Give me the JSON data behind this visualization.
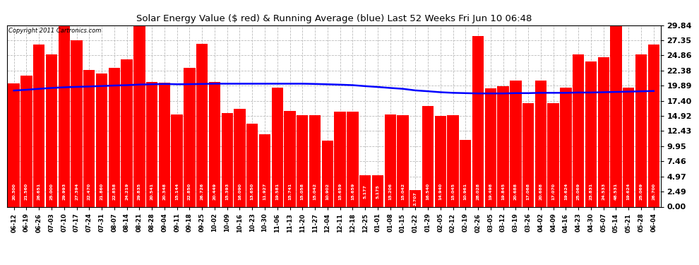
{
  "title": "Solar Energy Value ($ red) & Running Average (blue) Last 52 Weeks Fri Jun 10 06:48",
  "copyright": "Copyright 2011 Cartronics.com",
  "bar_color": "#ff0000",
  "avg_line_color": "#0000ff",
  "background_color": "#ffffff",
  "plot_bg_color": "#ffffff",
  "grid_color": "#bbbbbb",
  "ylim": [
    0.0,
    29.84
  ],
  "yticks": [
    0.0,
    2.49,
    4.97,
    7.46,
    9.95,
    12.43,
    14.92,
    17.4,
    19.89,
    22.38,
    24.86,
    27.35,
    29.84
  ],
  "categories": [
    "06-12",
    "06-19",
    "06-26",
    "07-03",
    "07-10",
    "07-17",
    "07-24",
    "07-31",
    "08-07",
    "08-14",
    "08-21",
    "08-28",
    "09-04",
    "09-11",
    "09-18",
    "09-25",
    "10-02",
    "10-09",
    "10-16",
    "10-23",
    "10-30",
    "11-06",
    "11-13",
    "11-20",
    "11-27",
    "12-04",
    "12-11",
    "12-18",
    "12-25",
    "01-01",
    "01-08",
    "01-15",
    "01-22",
    "01-29",
    "02-05",
    "02-12",
    "02-19",
    "02-26",
    "03-05",
    "03-12",
    "03-19",
    "03-26",
    "04-02",
    "04-09",
    "04-16",
    "04-23",
    "04-30",
    "05-07",
    "05-14",
    "05-21",
    "05-28",
    "06-04"
  ],
  "values": [
    20.3,
    21.56,
    26.651,
    25.0,
    29.993,
    27.394,
    22.47,
    21.86,
    22.858,
    24.219,
    29.835,
    20.541,
    20.348,
    15.144,
    22.85,
    26.726,
    20.449,
    15.393,
    16.09,
    13.65,
    11.927,
    19.581,
    15.741,
    15.058,
    15.042,
    10.902,
    15.659,
    15.659,
    5.177,
    5.175,
    15.206,
    15.042,
    2.707,
    16.54,
    14.94,
    15.045,
    10.961,
    28.028,
    19.498,
    19.845,
    20.688,
    17.068,
    20.688,
    17.07,
    19.624,
    25.069,
    23.831,
    24.533,
    29.84,
    19.624,
    25.069,
    26.7
  ],
  "values_raw": [
    20.3,
    21.56,
    26.651,
    25.0,
    29.993,
    27.394,
    22.47,
    21.86,
    22.858,
    24.219,
    29.835,
    20.541,
    20.348,
    15.144,
    22.85,
    26.726,
    20.449,
    15.393,
    16.09,
    13.65,
    11.927,
    19.581,
    15.741,
    15.058,
    15.042,
    10.902,
    15.659,
    15.659,
    5.177,
    5.175,
    15.206,
    15.042,
    2.707,
    16.54,
    14.94,
    15.045,
    10.961,
    28.028,
    19.498,
    19.845,
    20.688,
    17.068,
    20.688,
    17.07,
    19.624,
    25.069,
    23.831,
    24.533,
    48.531,
    19.624,
    25.069,
    26.7
  ],
  "running_avg": [
    19.1,
    19.22,
    19.38,
    19.52,
    19.63,
    19.7,
    19.76,
    19.84,
    19.92,
    19.98,
    20.08,
    20.13,
    20.18,
    20.13,
    20.14,
    20.18,
    20.22,
    20.22,
    20.22,
    20.22,
    20.22,
    20.22,
    20.22,
    20.22,
    20.18,
    20.12,
    20.06,
    19.98,
    19.82,
    19.68,
    19.52,
    19.38,
    19.12,
    18.98,
    18.82,
    18.72,
    18.67,
    18.62,
    18.62,
    18.62,
    18.67,
    18.67,
    18.72,
    18.72,
    18.72,
    18.77,
    18.77,
    18.82,
    18.87,
    18.92,
    18.97,
    19.02
  ]
}
